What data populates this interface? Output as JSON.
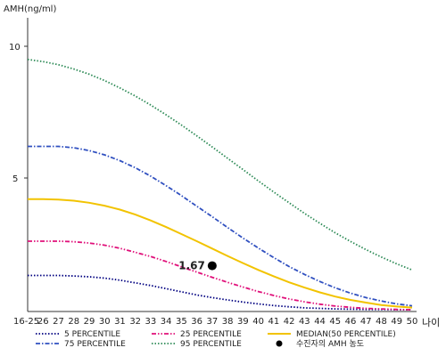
{
  "chart_data": {
    "type": "line",
    "ylabel": "AMH(ng/ml)",
    "xlabel": "나이",
    "ylim": [
      0,
      11
    ],
    "yticks": [
      {
        "value": 5,
        "label": "5"
      },
      {
        "value": 10,
        "label": "10"
      }
    ],
    "categories": [
      "16-25",
      "26",
      "27",
      "28",
      "29",
      "30",
      "31",
      "32",
      "33",
      "34",
      "35",
      "36",
      "37",
      "38",
      "39",
      "40",
      "41",
      "42",
      "43",
      "44",
      "45",
      "46",
      "47",
      "48",
      "49",
      "50"
    ],
    "grid": false,
    "legend_position": "bottom",
    "series": [
      {
        "name": "5 PERCENTILE",
        "color": "#000080",
        "style": "dotted",
        "values": [
          1.3,
          1.3,
          1.3,
          1.28,
          1.25,
          1.2,
          1.12,
          1.02,
          0.92,
          0.8,
          0.68,
          0.56,
          0.46,
          0.37,
          0.29,
          0.22,
          0.16,
          0.11,
          0.07,
          0.05,
          0.03,
          0.02,
          0.01,
          0.01,
          0.0,
          0.0
        ]
      },
      {
        "name": "25 PERCENTILE",
        "color": "#e0107a",
        "style": "dash-dot-dot",
        "values": [
          2.6,
          2.6,
          2.6,
          2.58,
          2.53,
          2.45,
          2.33,
          2.18,
          2.02,
          1.83,
          1.63,
          1.43,
          1.23,
          1.04,
          0.86,
          0.69,
          0.54,
          0.41,
          0.3,
          0.21,
          0.14,
          0.09,
          0.05,
          0.03,
          0.01,
          0.0
        ]
      },
      {
        "name": "MEDIAN(50 PERCENTILE)",
        "color": "#f2c300",
        "style": "solid",
        "values": [
          4.2,
          4.2,
          4.18,
          4.14,
          4.06,
          3.95,
          3.8,
          3.61,
          3.39,
          3.14,
          2.87,
          2.6,
          2.32,
          2.04,
          1.77,
          1.51,
          1.27,
          1.04,
          0.84,
          0.66,
          0.5,
          0.37,
          0.27,
          0.18,
          0.12,
          0.08
        ]
      },
      {
        "name": "75 PERCENTILE",
        "color": "#3050c0",
        "style": "dash-dot",
        "values": [
          6.2,
          6.2,
          6.2,
          6.15,
          6.04,
          5.88,
          5.66,
          5.39,
          5.07,
          4.71,
          4.33,
          3.93,
          3.53,
          3.12,
          2.72,
          2.34,
          1.98,
          1.64,
          1.34,
          1.07,
          0.83,
          0.63,
          0.46,
          0.33,
          0.22,
          0.15
        ]
      },
      {
        "name": "95 PERCENTILE",
        "color": "#2e8b57",
        "style": "dotted",
        "values": [
          9.5,
          9.42,
          9.3,
          9.14,
          8.94,
          8.7,
          8.42,
          8.11,
          7.77,
          7.4,
          7.01,
          6.6,
          6.18,
          5.75,
          5.32,
          4.89,
          4.47,
          4.06,
          3.66,
          3.28,
          2.92,
          2.59,
          2.28,
          2.0,
          1.74,
          1.51
        ]
      }
    ],
    "marker": {
      "name": "수진자의 AMH 농도",
      "x_category": "37",
      "value": 1.67,
      "label": "1.67",
      "color": "#000000"
    },
    "legend": [
      "5 PERCENTILE",
      "25 PERCENTILE",
      "MEDIAN(50 PERCENTILE)",
      "75 PERCENTILE",
      "95 PERCENTILE",
      "수진자의 AMH 농도"
    ]
  }
}
